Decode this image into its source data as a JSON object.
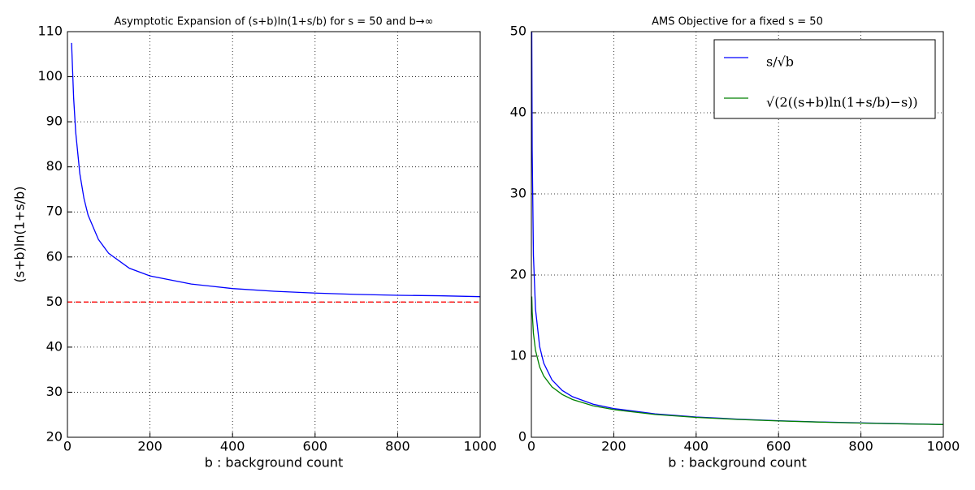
{
  "chart_data": [
    {
      "type": "line",
      "title": "Asymptotic Expansion of (s+b)ln(1+s/b) for s = 50 and b→∞",
      "xlabel": "b : background count",
      "ylabel": "(s+b)ln(1+s/b)",
      "xlim": [
        0,
        1000
      ],
      "ylim": [
        20,
        110
      ],
      "xticks": [
        0,
        200,
        400,
        600,
        800,
        1000
      ],
      "yticks": [
        20,
        30,
        40,
        50,
        60,
        70,
        80,
        90,
        100,
        110
      ],
      "grid": true,
      "series": [
        {
          "color": "#0000ff",
          "style": "solid",
          "x": [
            10,
            15,
            20,
            30,
            40,
            50,
            75,
            100,
            150,
            200,
            300,
            400,
            500,
            600,
            700,
            800,
            900,
            1000
          ],
          "values": [
            107.5,
            95.3,
            87.7,
            78.5,
            73.0,
            69.3,
            63.9,
            60.8,
            57.5,
            55.8,
            54.0,
            53.0,
            52.4,
            52.0,
            51.7,
            51.5,
            51.4,
            51.2
          ]
        },
        {
          "color": "#ff0000",
          "style": "dashed",
          "x": [
            0,
            1000
          ],
          "values": [
            50,
            50
          ]
        }
      ]
    },
    {
      "type": "line",
      "title": "AMS Objective for a fixed s = 50",
      "xlabel": "b : background count",
      "xlim": [
        0,
        1000
      ],
      "ylim": [
        0,
        50
      ],
      "xticks": [
        0,
        200,
        400,
        600,
        800,
        1000
      ],
      "yticks": [
        0,
        10,
        20,
        30,
        40,
        50
      ],
      "grid": true,
      "legend": "upper right",
      "series": [
        {
          "name": "s/√b",
          "color": "#0000ff",
          "style": "solid",
          "x": [
            1,
            2,
            5,
            10,
            20,
            30,
            50,
            75,
            100,
            150,
            200,
            300,
            400,
            500,
            600,
            700,
            800,
            900,
            1000
          ],
          "values": [
            50,
            35.4,
            22.4,
            15.8,
            11.2,
            9.13,
            7.07,
            5.77,
            5.0,
            4.08,
            3.54,
            2.89,
            2.5,
            2.24,
            2.04,
            1.89,
            1.77,
            1.67,
            1.58
          ]
        },
        {
          "name": "√(2((s+b)ln(1+s/b)−s))",
          "color": "#008000",
          "style": "solid",
          "x": [
            1,
            2,
            5,
            10,
            20,
            30,
            50,
            75,
            100,
            150,
            200,
            300,
            400,
            500,
            600,
            700,
            800,
            900,
            1000
          ],
          "values": [
            17.35,
            15.45,
            12.8,
            10.72,
            8.68,
            7.55,
            6.21,
            5.27,
            4.65,
            3.87,
            3.41,
            2.81,
            2.45,
            2.2,
            2.01,
            1.87,
            1.75,
            1.65,
            1.57
          ]
        }
      ]
    }
  ]
}
